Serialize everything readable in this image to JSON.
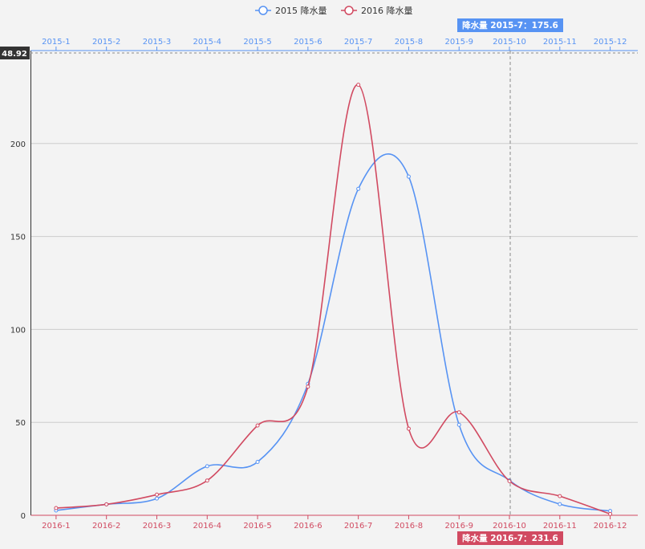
{
  "chart_data": {
    "type": "line",
    "smooth": true,
    "legend": {
      "position": "top",
      "entries": [
        "2015 降水量",
        "2016 降水量"
      ]
    },
    "x_top": {
      "categories": [
        "2015-1",
        "2015-2",
        "2015-3",
        "2015-4",
        "2015-5",
        "2015-6",
        "2015-7",
        "2015-8",
        "2015-9",
        "2015-10",
        "2015-11",
        "2015-12"
      ],
      "color": "#5793f3"
    },
    "x_bottom": {
      "categories": [
        "2016-1",
        "2016-2",
        "2016-3",
        "2016-4",
        "2016-5",
        "2016-6",
        "2016-7",
        "2016-8",
        "2016-9",
        "2016-10",
        "2016-11",
        "2016-12"
      ],
      "color": "#d14a61"
    },
    "y": {
      "ylim": [
        0,
        250
      ],
      "ticks": [
        0,
        50,
        100,
        150,
        200
      ],
      "grid": true
    },
    "series": [
      {
        "name": "2015 降水量",
        "color": "#5793f3",
        "axis": "top",
        "values": [
          2.6,
          5.9,
          9.0,
          26.4,
          28.7,
          70.7,
          175.6,
          182.2,
          48.7,
          18.8,
          6.0,
          2.3
        ]
      },
      {
        "name": "2016 降水量",
        "color": "#d14a61",
        "axis": "bottom",
        "values": [
          3.9,
          5.9,
          11.1,
          18.7,
          48.3,
          69.2,
          231.6,
          46.6,
          55.4,
          18.4,
          10.3,
          0.7
        ]
      }
    ],
    "axis_pointer": {
      "y_label": "48.92",
      "top_label": "降水量  2015-7：175.6",
      "bottom_label": "降水量  2016-7：231.6"
    }
  }
}
